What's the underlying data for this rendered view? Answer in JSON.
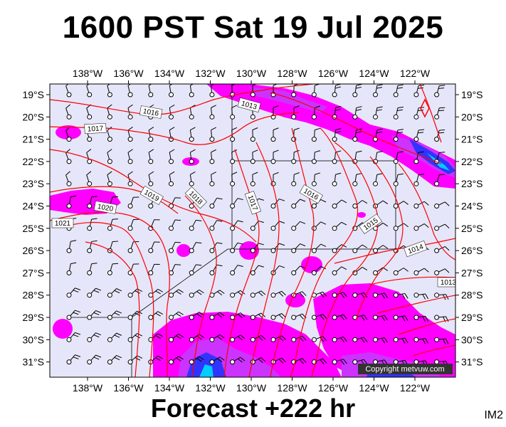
{
  "title": "1600 PST Sat 19 Jul 2025",
  "footer": "Forecast +222 hr",
  "tag": "IM2",
  "copyright": "Copyright metvuw.com",
  "map": {
    "lon_labels": [
      "138°W",
      "136°W",
      "134°W",
      "132°W",
      "130°W",
      "128°W",
      "126°W",
      "124°W",
      "122°W"
    ],
    "lat_labels": [
      "19°S",
      "20°S",
      "21°S",
      "22°S",
      "23°S",
      "24°S",
      "25°S",
      "26°S",
      "27°S",
      "28°S",
      "29°S",
      "30°S",
      "31°S"
    ],
    "lon_range": [
      -139.7,
      -119.2
    ],
    "lat_range": [
      -31.5,
      -18.6
    ],
    "colors": {
      "background": "#e6e6fa",
      "isobar": "#ff0000",
      "precip_light": "#ff00ff",
      "precip_medium": "#cc33ff",
      "precip_heavy": "#3333ff",
      "precip_extreme": "#00ccff",
      "wind_barb": "#000000"
    },
    "isobar_labels": [
      "1016",
      "1017",
      "1013",
      "1019",
      "1020",
      "1018",
      "1017",
      "1016",
      "1015",
      "1021",
      "1014",
      "1013"
    ]
  }
}
